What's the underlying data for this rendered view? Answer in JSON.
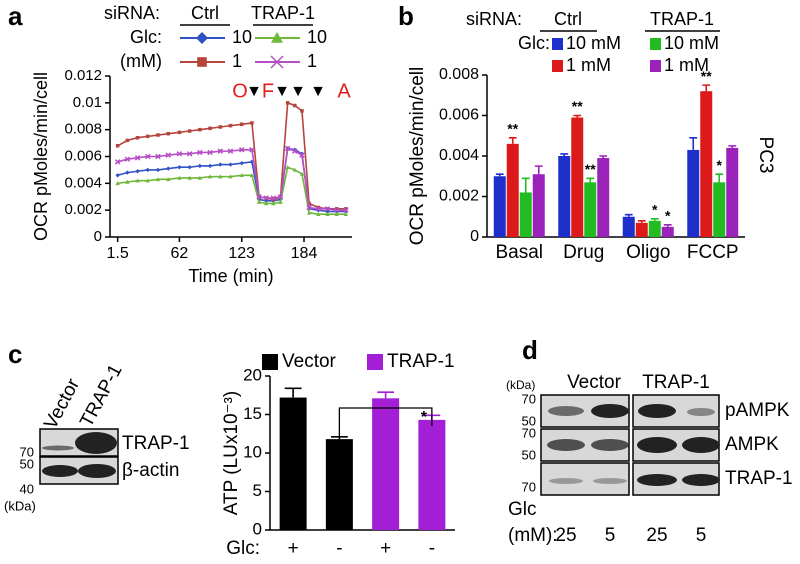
{
  "panel_labels": [
    "a",
    "b",
    "c",
    "d"
  ],
  "chart_data": [
    {
      "type": "line",
      "legend": {
        "title": "siRNA:",
        "groups": [
          "Ctrl",
          "TRAP-1"
        ],
        "row_labels": [
          "Glc:",
          "(mM)"
        ]
      },
      "xlabel": "Time (min)",
      "ylabel": "OCR pMoles/min/cell",
      "annotations": [
        "O",
        "F",
        "A"
      ],
      "x": [
        1.5,
        11,
        21,
        31,
        41,
        51,
        62,
        72,
        82,
        92,
        102,
        112,
        123,
        133,
        140,
        147,
        154,
        161,
        168,
        175,
        182,
        189,
        198,
        207,
        216,
        225
      ],
      "series": [
        {
          "name": "10",
          "color": "#2f52c4",
          "marker": "diamond",
          "values": [
            0.0046,
            0.0048,
            0.0049,
            0.005,
            0.005,
            0.0051,
            0.0052,
            0.0052,
            0.0053,
            0.0053,
            0.0054,
            0.0054,
            0.0055,
            0.0056,
            0.0028,
            0.0027,
            0.0027,
            0.0028,
            0.0066,
            0.0065,
            0.0062,
            0.0021,
            0.002,
            0.0019,
            0.0019,
            0.0019
          ]
        },
        {
          "name": "1",
          "color": "#b5443c",
          "marker": "square",
          "values": [
            0.0068,
            0.0072,
            0.0074,
            0.0075,
            0.0076,
            0.0077,
            0.0078,
            0.0079,
            0.008,
            0.0081,
            0.0082,
            0.0083,
            0.0084,
            0.0085,
            0.003,
            0.0029,
            0.0028,
            0.003,
            0.01,
            0.0098,
            0.0094,
            0.0025,
            0.0022,
            0.0021,
            0.0021,
            0.0021
          ]
        },
        {
          "name": "10",
          "color": "#6fb83a",
          "marker": "triangle",
          "values": [
            0.004,
            0.0041,
            0.0042,
            0.0042,
            0.0043,
            0.0043,
            0.0044,
            0.0044,
            0.0044,
            0.0045,
            0.0045,
            0.0045,
            0.0046,
            0.0046,
            0.0026,
            0.0025,
            0.0025,
            0.0026,
            0.0052,
            0.005,
            0.0047,
            0.0018,
            0.0017,
            0.0017,
            0.0017,
            0.0017
          ]
        },
        {
          "name": "1",
          "color": "#b54fc4",
          "marker": "x",
          "values": [
            0.0056,
            0.0058,
            0.0059,
            0.006,
            0.006,
            0.0061,
            0.0062,
            0.0062,
            0.0063,
            0.0063,
            0.0064,
            0.0064,
            0.0065,
            0.0065,
            0.003,
            0.0029,
            0.0029,
            0.003,
            0.0066,
            0.0064,
            0.0061,
            0.0022,
            0.0021,
            0.0021,
            0.002,
            0.002
          ]
        }
      ],
      "xlim": [
        -6,
        231
      ],
      "xticks": [
        1.5,
        62,
        123,
        184
      ],
      "ylim": [
        0,
        0.012
      ],
      "yticks": [
        0,
        0.002,
        0.004,
        0.006,
        0.008,
        0.01,
        0.012
      ]
    },
    {
      "type": "bar",
      "legend": {
        "title": "siRNA:",
        "groups": [
          "Ctrl",
          "TRAP-1"
        ],
        "row_labels": [
          "Glc:"
        ]
      },
      "ylabel": "OCR pMoles/min/cell",
      "side_label": "PC3",
      "categories": [
        "Basal",
        "Drug",
        "Oligo",
        "FCCP"
      ],
      "series": [
        {
          "name": "10 mM",
          "color": "#1f2fcc",
          "values": [
            0.003,
            0.004,
            0.001,
            0.0043
          ],
          "errors": [
            0.0001,
            0.0001,
            0.0001,
            0.0006
          ],
          "stars": [
            null,
            null,
            null,
            null
          ]
        },
        {
          "name": "1 mM",
          "color": "#dd1a1a",
          "values": [
            0.0046,
            0.0059,
            0.0007,
            0.0072
          ],
          "errors": [
            0.0003,
            0.0001,
            0.0001,
            0.0003
          ],
          "stars": [
            "**",
            "**",
            null,
            "**"
          ]
        },
        {
          "name": "10 mM",
          "color": "#22bb22",
          "values": [
            0.0022,
            0.0027,
            0.0008,
            0.0027
          ],
          "errors": [
            0.0007,
            0.0002,
            0.0001,
            0.0004
          ],
          "stars": [
            null,
            "**",
            "*",
            "*"
          ]
        },
        {
          "name": "1 mM",
          "color": "#9a22b8",
          "values": [
            0.0031,
            0.0039,
            0.0005,
            0.0044
          ],
          "errors": [
            0.0004,
            0.0001,
            0.0001,
            0.0001
          ],
          "stars": [
            null,
            null,
            "*",
            null
          ]
        }
      ],
      "ylim": [
        0,
        0.008
      ],
      "yticks": [
        0,
        0.002,
        0.004,
        0.006,
        0.008
      ]
    },
    {
      "type": "bar",
      "ylabel": "ATP (LUx10⁻³)",
      "xlabel": "Glc:",
      "categories": [
        "+",
        "-",
        "+",
        "-"
      ],
      "series": [
        {
          "name": "Vector",
          "color": "#000000",
          "values": [
            17.2,
            11.8,
            null,
            null
          ],
          "errors": [
            1.2,
            0.3,
            null,
            null
          ]
        },
        {
          "name": "TRAP-1",
          "color": "#a21fd6",
          "values": [
            null,
            null,
            17.1,
            14.3
          ],
          "errors": [
            null,
            null,
            0.8,
            0.6
          ]
        }
      ],
      "comparison": {
        "label": "*"
      },
      "ylim": [
        0,
        20
      ],
      "yticks": [
        0,
        5,
        10,
        15,
        20
      ]
    }
  ],
  "blot_c": {
    "lanes": [
      "Vector",
      "TRAP-1"
    ],
    "rows": [
      "TRAP-1",
      "β-actin"
    ],
    "markers": [
      70,
      50,
      40
    ],
    "unit": "(kDa)"
  },
  "blot_d": {
    "unit": "(kDa)",
    "groups": [
      "Vector",
      "TRAP-1"
    ],
    "rows": [
      "pAMPK",
      "AMPK",
      "TRAP-1"
    ],
    "markers": [
      70,
      50,
      70,
      50,
      70
    ],
    "glc_label": "Glc",
    "unit_label": "(mM):",
    "lanes": [
      25,
      5,
      25,
      5
    ]
  }
}
